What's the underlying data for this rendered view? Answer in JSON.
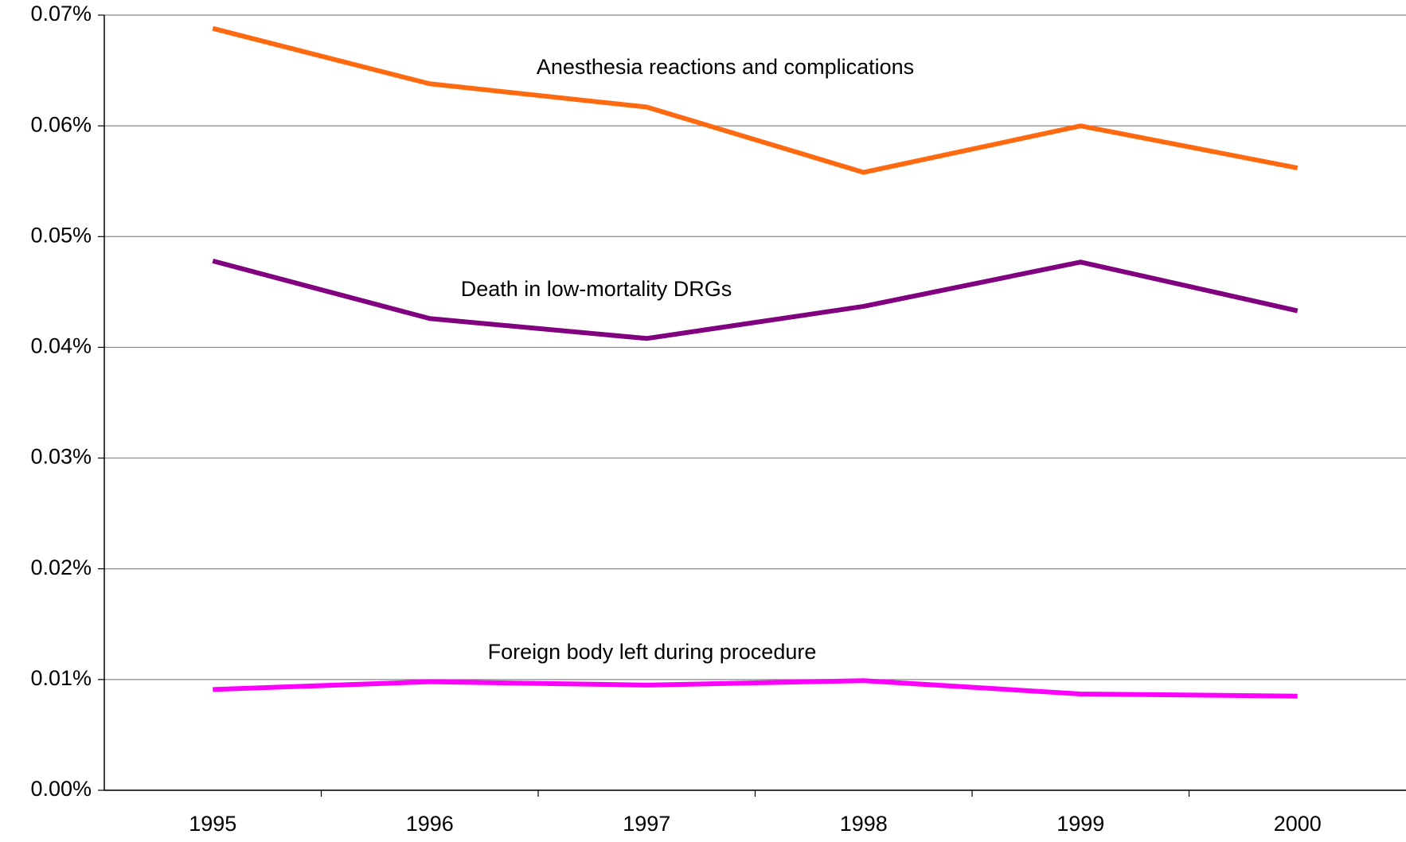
{
  "chart_data": {
    "type": "line",
    "categories": [
      "1995",
      "1996",
      "1997",
      "1998",
      "1999",
      "2000"
    ],
    "series": [
      {
        "name": "Anesthesia reactions and complications",
        "color": "#ff6a10",
        "values": [
          0.0688,
          0.0638,
          0.0617,
          0.0558,
          0.06,
          0.0562
        ]
      },
      {
        "name": "Death in low-mortality DRGs",
        "color": "#800080",
        "values": [
          0.0478,
          0.0426,
          0.0408,
          0.0437,
          0.0477,
          0.0433
        ]
      },
      {
        "name": "Foreign body left during procedure",
        "color": "#ff00ff",
        "values": [
          0.0091,
          0.0098,
          0.0095,
          0.0099,
          0.0087,
          0.0085
        ]
      }
    ],
    "ylim": [
      0,
      0.07
    ],
    "yticks": [
      {
        "value": 0,
        "label": "0.00%"
      },
      {
        "value": 0.01,
        "label": "0.01%"
      },
      {
        "value": 0.02,
        "label": "0.02%"
      },
      {
        "value": 0.03,
        "label": "0.03%"
      },
      {
        "value": 0.04,
        "label": "0.04%"
      },
      {
        "value": 0.05,
        "label": "0.05%"
      },
      {
        "value": 0.06,
        "label": "0.06%"
      },
      {
        "value": 0.07,
        "label": "0.07%"
      }
    ],
    "grid": true
  }
}
